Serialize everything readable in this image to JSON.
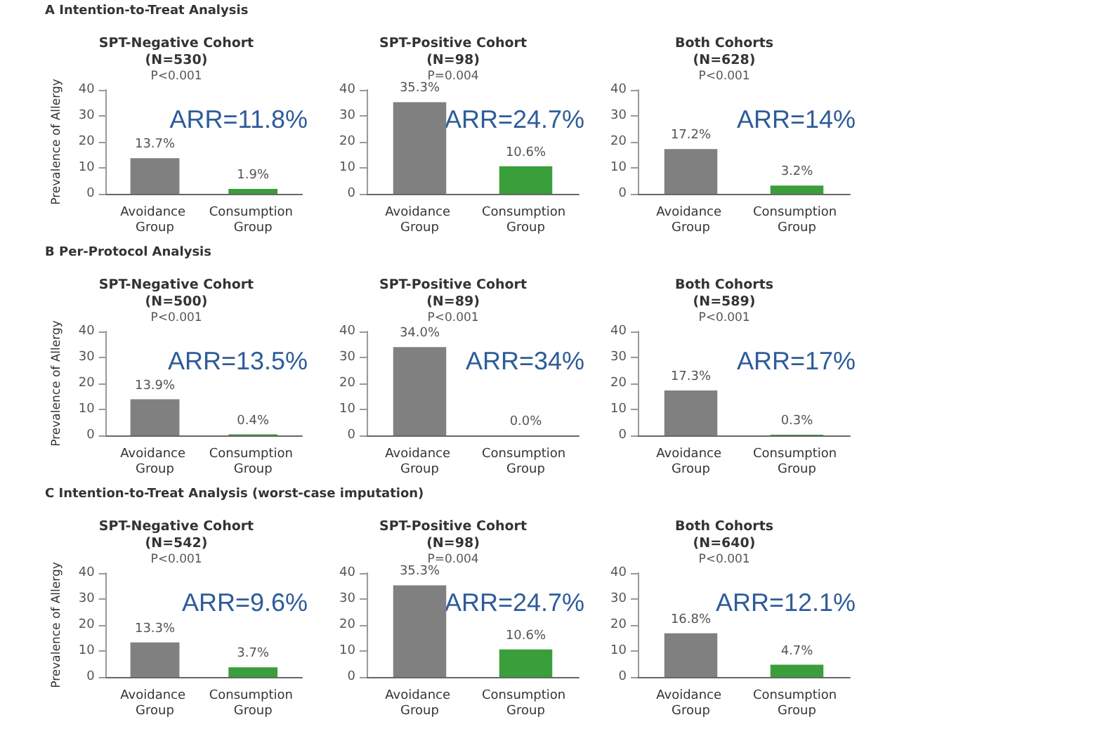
{
  "chart_data": [
    {
      "type": "bar",
      "title": "SPT-Negative Cohort\n(N=530)",
      "ylabel": "Prevalence of Allergy",
      "categories": [
        "Avoidance Group",
        "Consumption Group"
      ],
      "values": [
        13.7,
        1.9
      ],
      "colors": [
        "#808080",
        "#3a9e3a"
      ],
      "value_labels": [
        "13.7%",
        "1.9%"
      ],
      "ylim": [
        0,
        40
      ],
      "yticks": [
        0,
        10,
        20,
        30,
        40
      ],
      "grid": false,
      "annotations": [
        "P<0.001",
        "ARR=11.8%",
        "A  Intention-to-Treat Analysis"
      ]
    },
    {
      "type": "bar",
      "title": "SPT-Positive Cohort\n(N=98)",
      "categories": [
        "Avoidance Group",
        "Consumption Group"
      ],
      "values": [
        35.3,
        10.6
      ],
      "colors": [
        "#808080",
        "#3a9e3a"
      ],
      "value_labels": [
        "35.3%",
        "10.6%"
      ],
      "ylim": [
        0,
        40
      ],
      "yticks": [
        0,
        10,
        20,
        30,
        40
      ],
      "grid": false,
      "annotations": [
        "P=0.004",
        "ARR=24.7%"
      ]
    },
    {
      "type": "bar",
      "title": "Both Cohorts\n(N=628)",
      "categories": [
        "Avoidance Group",
        "Consumption Group"
      ],
      "values": [
        17.2,
        3.2
      ],
      "colors": [
        "#808080",
        "#3a9e3a"
      ],
      "value_labels": [
        "17.2%",
        "3.2%"
      ],
      "ylim": [
        0,
        40
      ],
      "yticks": [
        0,
        10,
        20,
        30,
        40
      ],
      "grid": false,
      "annotations": [
        "P<0.001",
        "ARR=14%"
      ]
    },
    {
      "type": "bar",
      "title": "SPT-Negative Cohort\n(N=500)",
      "ylabel": "Prevalence of Allergy",
      "categories": [
        "Avoidance Group",
        "Consumption Group"
      ],
      "values": [
        13.9,
        0.4
      ],
      "colors": [
        "#808080",
        "#3a9e3a"
      ],
      "value_labels": [
        "13.9%",
        "0.4%"
      ],
      "ylim": [
        0,
        40
      ],
      "yticks": [
        0,
        10,
        20,
        30,
        40
      ],
      "grid": false,
      "annotations": [
        "P<0.001",
        "ARR=13.5%",
        "B  Per-Protocol Analysis"
      ]
    },
    {
      "type": "bar",
      "title": "SPT-Positive Cohort\n(N=89)",
      "categories": [
        "Avoidance Group",
        "Consumption Group"
      ],
      "values": [
        34.0,
        0.0
      ],
      "colors": [
        "#808080",
        "#3a9e3a"
      ],
      "value_labels": [
        "34.0%",
        "0.0%"
      ],
      "ylim": [
        0,
        40
      ],
      "yticks": [
        0,
        10,
        20,
        30,
        40
      ],
      "grid": false,
      "annotations": [
        "P<0.001",
        "ARR=34%"
      ]
    },
    {
      "type": "bar",
      "title": "Both Cohorts\n(N=589)",
      "categories": [
        "Avoidance Group",
        "Consumption Group"
      ],
      "values": [
        17.3,
        0.3
      ],
      "colors": [
        "#808080",
        "#3a9e3a"
      ],
      "value_labels": [
        "17.3%",
        "0.3%"
      ],
      "ylim": [
        0,
        40
      ],
      "yticks": [
        0,
        10,
        20,
        30,
        40
      ],
      "grid": false,
      "annotations": [
        "P<0.001",
        "ARR=17%"
      ]
    },
    {
      "type": "bar",
      "title": "SPT-Negative Cohort\n(N=542)",
      "ylabel": "Prevalence of Allergy",
      "categories": [
        "Avoidance Group",
        "Consumption Group"
      ],
      "values": [
        13.3,
        3.7
      ],
      "colors": [
        "#808080",
        "#3a9e3a"
      ],
      "value_labels": [
        "13.3%",
        "3.7%"
      ],
      "ylim": [
        0,
        40
      ],
      "yticks": [
        0,
        10,
        20,
        30,
        40
      ],
      "grid": false,
      "annotations": [
        "P<0.001",
        "ARR=9.6%",
        "C  Intention-to-Treat Analysis (worst-case imputation)"
      ]
    },
    {
      "type": "bar",
      "title": "SPT-Positive Cohort\n(N=98)",
      "categories": [
        "Avoidance Group",
        "Consumption Group"
      ],
      "values": [
        35.3,
        10.6
      ],
      "colors": [
        "#808080",
        "#3a9e3a"
      ],
      "value_labels": [
        "35.3%",
        "10.6%"
      ],
      "ylim": [
        0,
        40
      ],
      "yticks": [
        0,
        10,
        20,
        30,
        40
      ],
      "grid": false,
      "annotations": [
        "P=0.004",
        "ARR=24.7%"
      ]
    },
    {
      "type": "bar",
      "title": "Both Cohorts\n(N=640)",
      "categories": [
        "Avoidance Group",
        "Consumption Group"
      ],
      "values": [
        16.8,
        4.7
      ],
      "colors": [
        "#808080",
        "#3a9e3a"
      ],
      "value_labels": [
        "16.8%",
        "4.7%"
      ],
      "ylim": [
        0,
        40
      ],
      "yticks": [
        0,
        10,
        20,
        30,
        40
      ],
      "grid": false,
      "annotations": [
        "P<0.001",
        "ARR=12.1%"
      ]
    }
  ]
}
